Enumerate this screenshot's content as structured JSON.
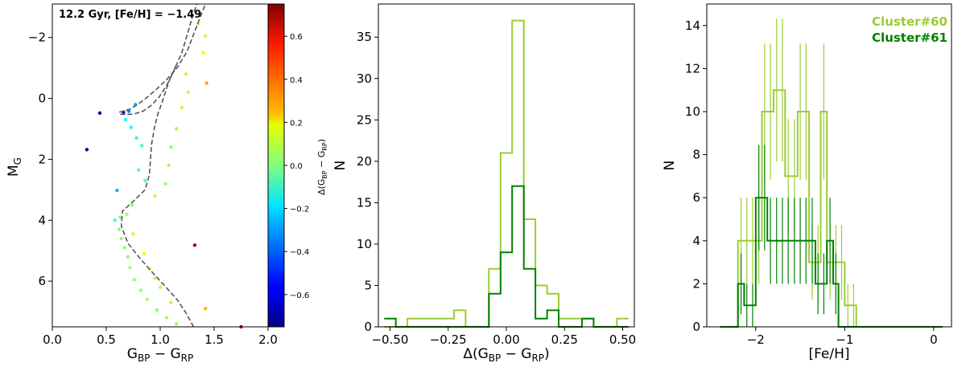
{
  "chart_data": [
    {
      "type": "scatter",
      "annotation": "12.2 Gyr, [Fe/H] = −1.49",
      "xlabel": "G_BP − G_RP",
      "ylabel": "M_G",
      "colorbar_label": "Δ(G_BP − G_RP)",
      "xlim": [
        0.0,
        2.0
      ],
      "ylim": [
        7.5,
        -3.1
      ],
      "xticks": [
        "0.0",
        "0.5",
        "1.0",
        "1.5",
        "2.0"
      ],
      "yticks": [
        "−2",
        "0",
        "2",
        "4",
        "6"
      ],
      "colorbar": {
        "range": [
          -0.75,
          0.75
        ],
        "ticks": [
          "−0.6",
          "−0.4",
          "−0.2",
          "0.0",
          "0.2",
          "0.4",
          "0.6"
        ],
        "colormap": "jet"
      },
      "isochrone_a": [
        [
          0.62,
          0.45
        ],
        [
          0.66,
          0.42
        ],
        [
          0.72,
          0.35
        ],
        [
          0.78,
          0.22
        ],
        [
          0.86,
          0.02
        ],
        [
          0.96,
          -0.28
        ],
        [
          1.06,
          -0.62
        ],
        [
          1.16,
          -1.02
        ],
        [
          1.25,
          -1.55
        ],
        [
          1.32,
          -2.2
        ],
        [
          1.38,
          -2.75
        ],
        [
          1.42,
          -3.1
        ]
      ],
      "isochrone_b": [
        [
          0.63,
          0.52
        ],
        [
          0.75,
          0.52
        ],
        [
          0.84,
          0.42
        ],
        [
          0.92,
          0.22
        ],
        [
          0.99,
          -0.05
        ],
        [
          1.06,
          -0.42
        ],
        [
          1.12,
          -0.85
        ],
        [
          1.2,
          -1.5
        ],
        [
          1.26,
          -2.2
        ],
        [
          1.3,
          -2.7
        ],
        [
          1.34,
          -3.1
        ]
      ],
      "isochrone_c": [
        [
          1.31,
          7.5
        ],
        [
          1.24,
          7.05
        ],
        [
          1.16,
          6.62
        ],
        [
          1.06,
          6.22
        ],
        [
          0.93,
          5.72
        ],
        [
          0.8,
          5.2
        ],
        [
          0.7,
          4.75
        ],
        [
          0.64,
          4.2
        ],
        [
          0.65,
          3.7
        ],
        [
          0.76,
          3.35
        ],
        [
          0.86,
          3.0
        ],
        [
          0.9,
          2.5
        ],
        [
          0.92,
          1.5
        ],
        [
          0.95,
          0.9
        ],
        [
          0.98,
          0.5
        ],
        [
          1.02,
          0.1
        ],
        [
          1.08,
          -0.55
        ],
        [
          1.15,
          -1.1
        ]
      ],
      "points": [
        {
          "x": 0.44,
          "y": 0.48,
          "c": -0.7
        },
        {
          "x": 0.32,
          "y": 1.68,
          "c": -0.72
        },
        {
          "x": 0.6,
          "y": 3.02,
          "c": -0.3
        },
        {
          "x": 0.66,
          "y": 0.45,
          "c": -0.55
        },
        {
          "x": 0.71,
          "y": 0.42,
          "c": -0.35
        },
        {
          "x": 0.77,
          "y": 0.2,
          "c": -0.28
        },
        {
          "x": 0.68,
          "y": 0.7,
          "c": -0.18
        },
        {
          "x": 0.73,
          "y": 0.95,
          "c": -0.15
        },
        {
          "x": 0.78,
          "y": 1.3,
          "c": -0.12
        },
        {
          "x": 0.83,
          "y": 1.55,
          "c": -0.1
        },
        {
          "x": 0.8,
          "y": 2.35,
          "c": -0.05
        },
        {
          "x": 0.86,
          "y": 2.7,
          "c": -0.08
        },
        {
          "x": 1.32,
          "y": 4.82,
          "c": 0.7
        },
        {
          "x": 1.42,
          "y": 6.9,
          "c": 0.3
        },
        {
          "x": 1.43,
          "y": -0.5,
          "c": 0.32
        },
        {
          "x": 1.75,
          "y": 7.5,
          "c": 0.65
        },
        {
          "x": 1.4,
          "y": -1.5,
          "c": 0.15
        },
        {
          "x": 1.42,
          "y": -2.05,
          "c": 0.1
        },
        {
          "x": 1.35,
          "y": -2.45,
          "c": 0.05
        },
        {
          "x": 1.24,
          "y": -0.8,
          "c": 0.08
        },
        {
          "x": 1.26,
          "y": -0.2,
          "c": 0.12
        },
        {
          "x": 1.2,
          "y": 0.3,
          "c": 0.1
        },
        {
          "x": 1.15,
          "y": 1.0,
          "c": 0.05
        },
        {
          "x": 1.1,
          "y": 1.6,
          "c": 0.02
        },
        {
          "x": 1.08,
          "y": 2.2,
          "c": 0.06
        },
        {
          "x": 1.05,
          "y": 2.8,
          "c": 0.04
        },
        {
          "x": 0.95,
          "y": 3.2,
          "c": 0.1
        },
        {
          "x": 0.63,
          "y": 3.9,
          "c": -0.02
        },
        {
          "x": 0.62,
          "y": 4.3,
          "c": 0.0
        },
        {
          "x": 0.64,
          "y": 4.6,
          "c": 0.03
        },
        {
          "x": 0.67,
          "y": 4.9,
          "c": 0.02
        },
        {
          "x": 0.7,
          "y": 5.2,
          "c": 0.01
        },
        {
          "x": 0.72,
          "y": 5.55,
          "c": 0.05
        },
        {
          "x": 0.76,
          "y": 5.95,
          "c": 0.02
        },
        {
          "x": 0.82,
          "y": 6.3,
          "c": 0.03
        },
        {
          "x": 0.88,
          "y": 6.6,
          "c": 0.06
        },
        {
          "x": 0.97,
          "y": 6.95,
          "c": 0.02
        },
        {
          "x": 1.06,
          "y": 7.2,
          "c": 0.05
        },
        {
          "x": 1.15,
          "y": 7.4,
          "c": 0.04
        },
        {
          "x": 0.9,
          "y": 5.6,
          "c": 0.12
        },
        {
          "x": 0.95,
          "y": 5.9,
          "c": 0.1
        },
        {
          "x": 1.0,
          "y": 6.2,
          "c": 0.08
        },
        {
          "x": 1.1,
          "y": 6.7,
          "c": 0.09
        },
        {
          "x": 0.85,
          "y": 5.1,
          "c": 0.15
        },
        {
          "x": 0.75,
          "y": 4.45,
          "c": 0.1
        },
        {
          "x": 0.69,
          "y": 3.8,
          "c": 0.05
        },
        {
          "x": 0.74,
          "y": 3.5,
          "c": 0.02
        },
        {
          "x": 0.58,
          "y": 4.0,
          "c": -0.1
        }
      ]
    },
    {
      "type": "histogram",
      "xlabel": "Δ(G_BP − G_RP)",
      "ylabel": "N",
      "xlim": [
        -0.55,
        0.55
      ],
      "ylim": [
        0,
        39
      ],
      "xticks": [
        "−0.50",
        "−0.25",
        "0.00",
        "0.25",
        "0.50"
      ],
      "yticks": [
        "0",
        "5",
        "10",
        "15",
        "20",
        "25",
        "30",
        "35"
      ],
      "bin_edges": [
        -0.525,
        -0.475,
        -0.425,
        -0.375,
        -0.325,
        -0.275,
        -0.225,
        -0.175,
        -0.125,
        -0.075,
        -0.025,
        0.025,
        0.075,
        0.125,
        0.175,
        0.225,
        0.275,
        0.325,
        0.375,
        0.425,
        0.475,
        0.525
      ],
      "series": [
        {
          "color": "#9acd32",
          "values": [
            0,
            0,
            1,
            1,
            1,
            1,
            2,
            0,
            0,
            7,
            21,
            37,
            13,
            5,
            4,
            1,
            1,
            1,
            0,
            0,
            1
          ]
        },
        {
          "color": "#008000",
          "values": [
            1,
            0,
            0,
            0,
            0,
            0,
            0,
            0,
            0,
            4,
            9,
            17,
            7,
            1,
            2,
            0,
            0,
            1,
            0,
            0,
            0
          ]
        }
      ]
    },
    {
      "type": "histogram",
      "xlabel": "[Fe/H]",
      "ylabel": "N",
      "xlim": [
        -2.55,
        0.2
      ],
      "ylim": [
        0,
        15
      ],
      "xticks": [
        "−2",
        "−1",
        "0"
      ],
      "yticks": [
        "0",
        "2",
        "4",
        "6",
        "8",
        "10",
        "12",
        "14"
      ],
      "series": [
        {
          "name": "Cluster#60",
          "color": "#9acd32",
          "bins": [
            [
              -2.4,
              -2.2,
              0
            ],
            [
              -2.2,
              -2.13,
              4
            ],
            [
              -2.13,
              -2.07,
              4
            ],
            [
              -2.07,
              -2.0,
              4
            ],
            [
              -2.0,
              -1.93,
              4
            ],
            [
              -1.93,
              -1.87,
              10
            ],
            [
              -1.87,
              -1.8,
              10
            ],
            [
              -1.8,
              -1.73,
              11
            ],
            [
              -1.73,
              -1.67,
              11
            ],
            [
              -1.67,
              -1.6,
              7
            ],
            [
              -1.6,
              -1.53,
              7
            ],
            [
              -1.53,
              -1.47,
              10
            ],
            [
              -1.47,
              -1.4,
              10
            ],
            [
              -1.4,
              -1.33,
              3
            ],
            [
              -1.33,
              -1.27,
              3
            ],
            [
              -1.27,
              -1.2,
              10
            ],
            [
              -1.2,
              -1.13,
              3
            ],
            [
              -1.13,
              -1.07,
              3
            ],
            [
              -1.07,
              -1.0,
              3
            ],
            [
              -1.0,
              -0.93,
              1
            ],
            [
              -0.93,
              -0.87,
              1
            ],
            [
              -0.87,
              0.1,
              0
            ]
          ]
        },
        {
          "name": "Cluster#61",
          "color": "#008000",
          "bins": [
            [
              -2.4,
              -2.2,
              0
            ],
            [
              -2.2,
              -2.13,
              2
            ],
            [
              -2.13,
              -2.07,
              1
            ],
            [
              -2.07,
              -2.0,
              1
            ],
            [
              -2.0,
              -1.93,
              6
            ],
            [
              -1.93,
              -1.87,
              6
            ],
            [
              -1.87,
              -1.8,
              4
            ],
            [
              -1.8,
              -1.73,
              4
            ],
            [
              -1.73,
              -1.67,
              4
            ],
            [
              -1.67,
              -1.6,
              4
            ],
            [
              -1.6,
              -1.53,
              4
            ],
            [
              -1.53,
              -1.47,
              4
            ],
            [
              -1.47,
              -1.4,
              4
            ],
            [
              -1.4,
              -1.33,
              4
            ],
            [
              -1.33,
              -1.27,
              2
            ],
            [
              -1.27,
              -1.2,
              2
            ],
            [
              -1.2,
              -1.13,
              4
            ],
            [
              -1.13,
              -1.07,
              2
            ],
            [
              -1.07,
              -1.0,
              0
            ],
            [
              -1.0,
              0.1,
              0
            ]
          ]
        }
      ]
    }
  ]
}
